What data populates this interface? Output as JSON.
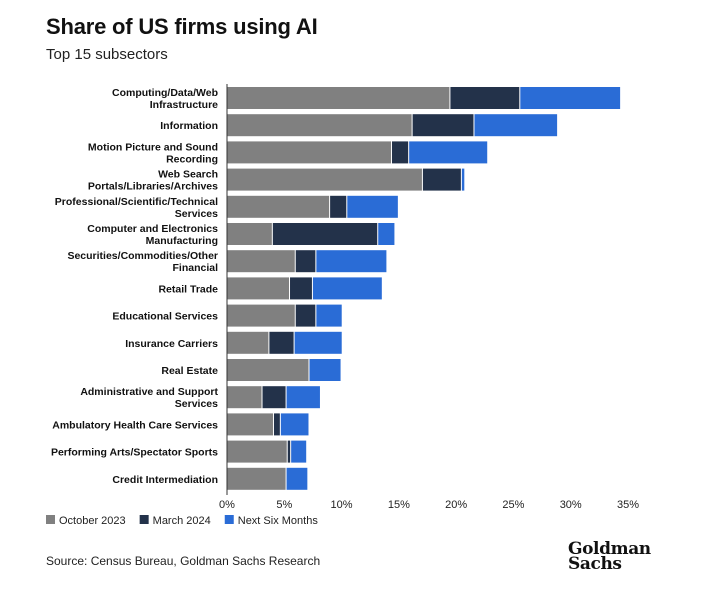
{
  "title": "Share of US firms using AI",
  "subtitle": "Top 15 subsectors",
  "source": "Source: Census Bureau, Goldman Sachs Research",
  "logo_text": [
    "Goldman",
    "Sachs"
  ],
  "colors": {
    "oct2023": "#808080",
    "mar2024": "#23324a",
    "next6": "#2a6cd6"
  },
  "chart_data": {
    "type": "bar",
    "orientation": "horizontal",
    "stacked": true,
    "title": "Share of US firms using AI",
    "subtitle": "Top 15 subsectors",
    "categories": [
      [
        "Computing/Data/Web",
        "Infrastructure"
      ],
      [
        "Information"
      ],
      [
        "Motion Picture and Sound",
        "Recording"
      ],
      [
        "Web Search",
        "Portals/Libraries/Archives"
      ],
      [
        "Professional/Scientific/Technical",
        "Services"
      ],
      [
        "Computer and Electronics",
        "Manufacturing"
      ],
      [
        "Securities/Commodities/Other",
        "Financial"
      ],
      [
        "Retail Trade"
      ],
      [
        "Educational Services"
      ],
      [
        "Insurance Carriers"
      ],
      [
        "Real Estate"
      ],
      [
        "Administrative and Support",
        "Services"
      ],
      [
        "Ambulatory Health Care Services"
      ],
      [
        "Performing Arts/Spectator Sports"
      ],
      [
        "Credit Intermediation"
      ]
    ],
    "series": [
      {
        "name": "October 2023",
        "color": "#808080",
        "values": [
          19.5,
          16.2,
          14.4,
          17.1,
          9.0,
          4.0,
          6.0,
          5.5,
          6.0,
          3.7,
          7.2,
          3.1,
          4.1,
          5.3,
          5.2
        ]
      },
      {
        "name": "March 2024",
        "color": "#23324a",
        "values": [
          6.1,
          5.4,
          1.5,
          3.4,
          1.5,
          9.2,
          1.8,
          2.0,
          1.8,
          2.2,
          0.0,
          2.1,
          0.6,
          0.3,
          0.0
        ]
      },
      {
        "name": "Next Six Months",
        "color": "#2a6cd6",
        "values": [
          8.8,
          7.3,
          6.9,
          0.3,
          4.5,
          1.5,
          6.2,
          6.1,
          2.3,
          4.2,
          2.8,
          3.0,
          2.5,
          1.4,
          1.9
        ]
      }
    ],
    "xlim": [
      0,
      35
    ],
    "xticks": [
      "0%",
      "5%",
      "10%",
      "15%",
      "20%",
      "25%",
      "30%",
      "35%"
    ],
    "legend_position": "bottom-left",
    "grid": false
  }
}
